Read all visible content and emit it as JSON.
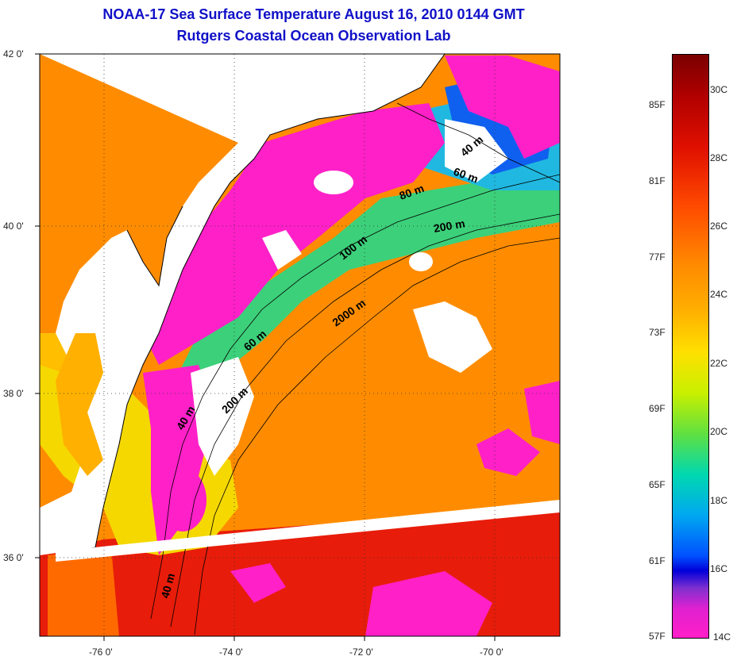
{
  "title": {
    "line1": "NOAA-17 Sea Surface Temperature August 16, 2010 0144 GMT",
    "line2": "Rutgers Coastal Ocean Observation Lab"
  },
  "axes": {
    "lat_ticks": [
      "42 0'",
      "40 0'",
      "38 0'",
      "36 0'"
    ],
    "lon_ticks": [
      "-76 0'",
      "-74 0'",
      "-72 0'",
      "-70 0'"
    ]
  },
  "isobaths": [
    "40 m",
    "60 m",
    "80 m",
    "200 m",
    "100 m",
    "2000 m",
    "60 m",
    "200 m",
    "40 m",
    "40 m"
  ],
  "colorbar": {
    "fahrenheit": [
      "85F",
      "81F",
      "77F",
      "73F",
      "69F",
      "65F",
      "61F",
      "57F"
    ],
    "celsius": [
      "30C",
      "28C",
      "26C",
      "24C",
      "22C",
      "20C",
      "18C",
      "16C",
      "14C"
    ]
  },
  "colors": {
    "title": "#1010c8",
    "land": "#ffffff",
    "cloud": "#ff20c8",
    "warm": "#ff8a00",
    "hot": "#e81808",
    "cool": "#ffe000",
    "cold": "#00c8e0"
  }
}
